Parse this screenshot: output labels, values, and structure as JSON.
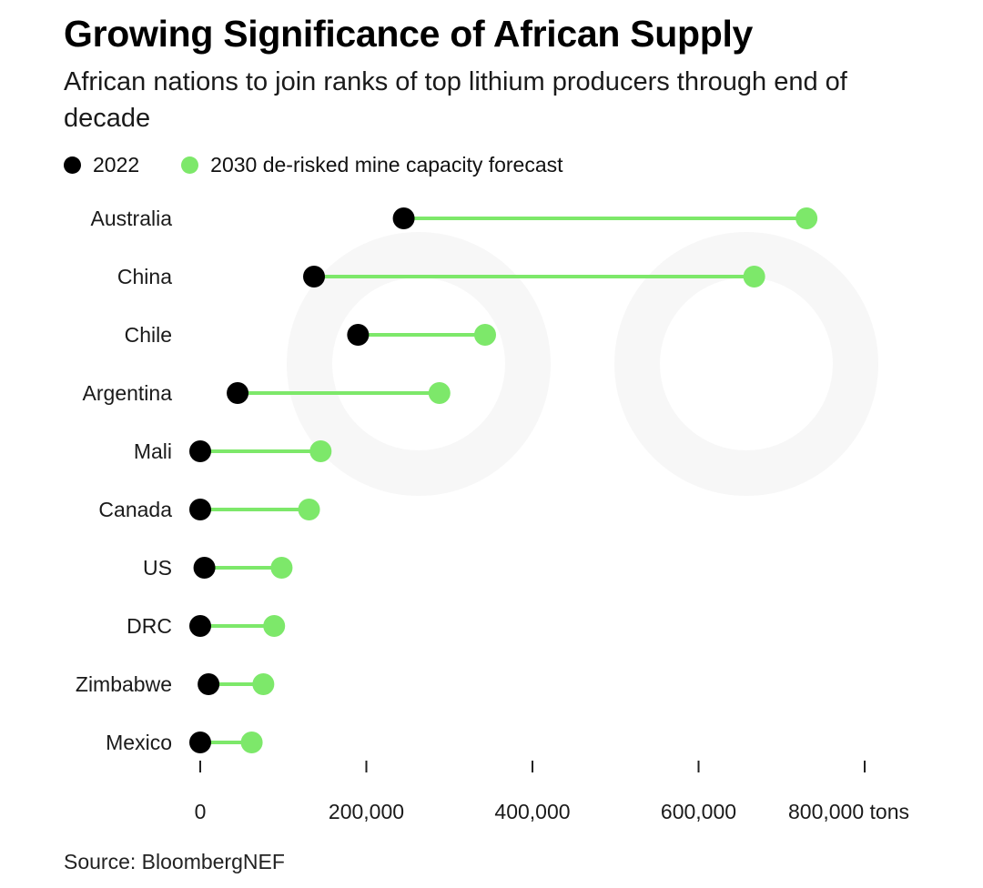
{
  "title": "Growing Significance of African Supply",
  "subtitle": "African nations to join ranks of top lithium producers through end of decade",
  "source": "Source: BloombergNEF",
  "colors": {
    "series_2022": "#000000",
    "series_2030": "#7de86a",
    "connector": "#7de86a"
  },
  "chart_data": {
    "type": "dumbbell",
    "categories": [
      "Australia",
      "China",
      "Chile",
      "Argentina",
      "Mali",
      "Canada",
      "US",
      "DRC",
      "Zimbabwe",
      "Mexico"
    ],
    "series": [
      {
        "name": "2022",
        "values": [
          245000,
          137000,
          190000,
          45000,
          0,
          0,
          5000,
          0,
          10000,
          0
        ]
      },
      {
        "name": "2030 de-risked mine capacity forecast",
        "values": [
          730000,
          667000,
          343000,
          288000,
          145000,
          131000,
          98000,
          89000,
          76000,
          62000
        ]
      }
    ],
    "x_ticks": [
      0,
      200000,
      400000,
      600000,
      800000
    ],
    "x_tick_labels": [
      "0",
      "200,000",
      "400,000",
      "600,000",
      "800,000 tons"
    ],
    "xlim": [
      0,
      800000
    ],
    "grid": false,
    "legend_position": "top-left"
  }
}
